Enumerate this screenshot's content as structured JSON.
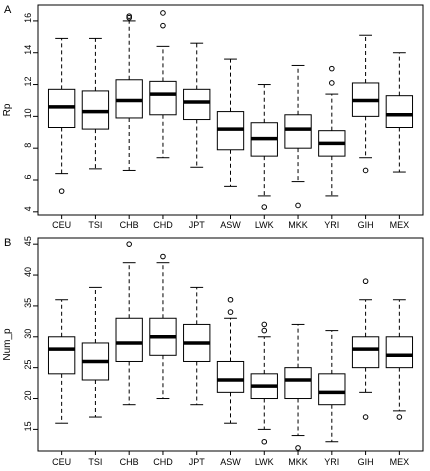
{
  "chart_data": [
    {
      "type": "boxplot",
      "panel_label": "A",
      "ylabel": "Rp",
      "xlabel": "",
      "ylim": [
        3.8,
        17.0
      ],
      "yticks": [
        4,
        6,
        8,
        10,
        12,
        14,
        16
      ],
      "categories": [
        "CEU",
        "TSI",
        "CHB",
        "CHD",
        "JPT",
        "ASW",
        "LWK",
        "MKK",
        "YRI",
        "GIH",
        "MEX"
      ],
      "boxes": [
        {
          "category": "CEU",
          "whisker_low": 6.4,
          "q1": 9.3,
          "median": 10.6,
          "q3": 11.7,
          "whisker_high": 14.9,
          "outliers": [
            5.3
          ]
        },
        {
          "category": "TSI",
          "whisker_low": 6.7,
          "q1": 9.2,
          "median": 10.3,
          "q3": 11.6,
          "whisker_high": 14.9,
          "outliers": []
        },
        {
          "category": "CHB",
          "whisker_low": 6.6,
          "q1": 9.9,
          "median": 11.0,
          "q3": 12.3,
          "whisker_high": 16.0,
          "outliers": [
            16.2,
            16.3
          ]
        },
        {
          "category": "CHD",
          "whisker_low": 7.4,
          "q1": 10.1,
          "median": 11.4,
          "q3": 12.2,
          "whisker_high": 14.4,
          "outliers": [
            15.7,
            16.5
          ]
        },
        {
          "category": "JPT",
          "whisker_low": 6.8,
          "q1": 9.8,
          "median": 10.9,
          "q3": 11.7,
          "whisker_high": 14.6,
          "outliers": []
        },
        {
          "category": "ASW",
          "whisker_low": 5.6,
          "q1": 7.9,
          "median": 9.2,
          "q3": 10.3,
          "whisker_high": 13.6,
          "outliers": []
        },
        {
          "category": "LWK",
          "whisker_low": 5.0,
          "q1": 7.5,
          "median": 8.6,
          "q3": 9.6,
          "whisker_high": 12.0,
          "outliers": [
            4.3
          ]
        },
        {
          "category": "MKK",
          "whisker_low": 5.9,
          "q1": 8.0,
          "median": 9.2,
          "q3": 10.1,
          "whisker_high": 13.2,
          "outliers": [
            4.4
          ]
        },
        {
          "category": "YRI",
          "whisker_low": 5.0,
          "q1": 7.5,
          "median": 8.3,
          "q3": 9.1,
          "whisker_high": 11.4,
          "outliers": [
            12.1,
            13.0
          ]
        },
        {
          "category": "GIH",
          "whisker_low": 7.4,
          "q1": 10.0,
          "median": 11.0,
          "q3": 12.1,
          "whisker_high": 15.1,
          "outliers": [
            6.6
          ]
        },
        {
          "category": "MEX",
          "whisker_low": 6.5,
          "q1": 9.3,
          "median": 10.1,
          "q3": 11.3,
          "whisker_high": 14.0,
          "outliers": []
        }
      ]
    },
    {
      "type": "boxplot",
      "panel_label": "B",
      "ylabel": "Num_p",
      "xlabel": "",
      "ylim": [
        11.5,
        46.0
      ],
      "yticks": [
        15,
        20,
        25,
        30,
        35,
        40,
        45
      ],
      "categories": [
        "CEU",
        "TSI",
        "CHB",
        "CHD",
        "JPT",
        "ASW",
        "LWK",
        "MKK",
        "YRI",
        "GIH",
        "MEX"
      ],
      "boxes": [
        {
          "category": "CEU",
          "whisker_low": 16,
          "q1": 24,
          "median": 28,
          "q3": 30,
          "whisker_high": 36,
          "outliers": []
        },
        {
          "category": "TSI",
          "whisker_low": 17,
          "q1": 23,
          "median": 26,
          "q3": 29,
          "whisker_high": 38,
          "outliers": []
        },
        {
          "category": "CHB",
          "whisker_low": 19,
          "q1": 26,
          "median": 29,
          "q3": 33,
          "whisker_high": 42,
          "outliers": [
            45
          ]
        },
        {
          "category": "CHD",
          "whisker_low": 20,
          "q1": 27,
          "median": 30,
          "q3": 33,
          "whisker_high": 42,
          "outliers": [
            43
          ]
        },
        {
          "category": "JPT",
          "whisker_low": 19,
          "q1": 26,
          "median": 29,
          "q3": 32,
          "whisker_high": 38,
          "outliers": []
        },
        {
          "category": "ASW",
          "whisker_low": 16,
          "q1": 21,
          "median": 23,
          "q3": 26,
          "whisker_high": 33,
          "outliers": [
            34,
            36
          ]
        },
        {
          "category": "LWK",
          "whisker_low": 15,
          "q1": 20,
          "median": 22,
          "q3": 24,
          "whisker_high": 30,
          "outliers": [
            13,
            31,
            32
          ]
        },
        {
          "category": "MKK",
          "whisker_low": 14,
          "q1": 20,
          "median": 23,
          "q3": 25,
          "whisker_high": 32,
          "outliers": [
            12
          ]
        },
        {
          "category": "YRI",
          "whisker_low": 13,
          "q1": 19,
          "median": 21,
          "q3": 24,
          "whisker_high": 31,
          "outliers": []
        },
        {
          "category": "GIH",
          "whisker_low": 21,
          "q1": 25,
          "median": 28,
          "q3": 30,
          "whisker_high": 36,
          "outliers": [
            17,
            39
          ]
        },
        {
          "category": "MEX",
          "whisker_low": 18,
          "q1": 25,
          "median": 27,
          "q3": 30,
          "whisker_high": 36,
          "outliers": [
            17
          ]
        }
      ]
    }
  ]
}
